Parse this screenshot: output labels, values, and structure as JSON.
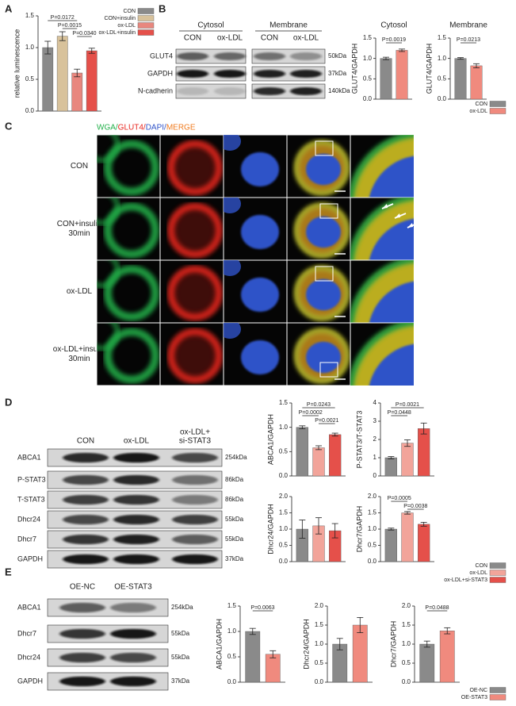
{
  "panel_labels": [
    "A",
    "B",
    "C",
    "D",
    "E"
  ],
  "chart_data": [
    {
      "type": "bar",
      "ylabel": "relative luminescence",
      "categories": [
        "CON",
        "CON+insulin",
        "ox-LDL",
        "ox-LDL+insulin"
      ],
      "values": [
        1.0,
        1.18,
        0.6,
        0.95
      ],
      "errors": [
        0.1,
        0.07,
        0.06,
        0.04
      ],
      "colors": [
        "#8a8a8a",
        "#d8c29b",
        "#e8877e",
        "#e5504a"
      ],
      "ylim": [
        0,
        1.5
      ],
      "yticks": [
        {
          "value": 0,
          "label": "0.0"
        },
        {
          "value": 0.5,
          "label": "0.5"
        },
        {
          "value": 1,
          "label": "1.0"
        },
        {
          "value": 1.5,
          "label": "1.5"
        }
      ],
      "annotations": [
        {
          "text": "P=0.0172",
          "between": [
            0,
            2
          ]
        },
        {
          "text": "P=0.0015",
          "between": [
            1,
            2
          ]
        },
        {
          "text": "P=0.0340",
          "between": [
            2,
            3
          ]
        }
      ]
    },
    {
      "type": "bar",
      "title": "Cytosol",
      "ylabel": "GLUT4/GAPDH",
      "values": [
        1.0,
        1.2
      ],
      "errors": [
        0.03,
        0.03
      ],
      "colors": [
        "#8a8a8a",
        "#f08a7e"
      ],
      "ylim": [
        0,
        1.5
      ],
      "yticks": [
        {
          "value": 0,
          "label": "0.0"
        },
        {
          "value": 0.5,
          "label": "0.5"
        },
        {
          "value": 1,
          "label": "1.0"
        },
        {
          "value": 1.5,
          "label": "1.5"
        }
      ],
      "annotations": [
        {
          "text": "P=0.0019",
          "between": [
            0,
            1
          ]
        }
      ]
    },
    {
      "type": "bar",
      "title": "Membrane",
      "ylabel": "GLUT4/GAPDH",
      "categories": [
        "CON",
        "ox-LDL"
      ],
      "values": [
        1.0,
        0.82
      ],
      "errors": [
        0.02,
        0.05
      ],
      "colors": [
        "#8a8a8a",
        "#f08a7e"
      ],
      "ylim": [
        0,
        1.5
      ],
      "yticks": [
        {
          "value": 0,
          "label": "0.0"
        },
        {
          "value": 0.5,
          "label": "0.5"
        },
        {
          "value": 1,
          "label": "1.0"
        },
        {
          "value": 1.5,
          "label": "1.5"
        }
      ],
      "annotations": [
        {
          "text": "P=0.0213",
          "between": [
            0,
            1
          ]
        }
      ]
    },
    {
      "type": "bar",
      "ylabel": "ABCA1/GAPDH",
      "values": [
        1.0,
        0.58,
        0.85
      ],
      "errors": [
        0.03,
        0.04,
        0.03
      ],
      "colors": [
        "#8a8a8a",
        "#f2a49a",
        "#e5504a"
      ],
      "ylim": [
        0,
        1.5
      ],
      "yticks": [
        {
          "value": 0,
          "label": "0.0"
        },
        {
          "value": 0.5,
          "label": "0.5"
        },
        {
          "value": 1,
          "label": "1.0"
        },
        {
          "value": 1.5,
          "label": "1.5"
        }
      ],
      "annotations": [
        {
          "text": "P=0.0243",
          "between": [
            0,
            2
          ]
        },
        {
          "text": "P=0.0002",
          "between": [
            0,
            1
          ]
        },
        {
          "text": "P=0.0021",
          "between": [
            1,
            2
          ]
        }
      ]
    },
    {
      "type": "bar",
      "ylabel": "P-STAT3/T-STAT3",
      "values": [
        1.0,
        1.8,
        2.6
      ],
      "errors": [
        0.06,
        0.18,
        0.3
      ],
      "colors": [
        "#8a8a8a",
        "#f2a49a",
        "#e5504a"
      ],
      "ylim": [
        0,
        4
      ],
      "yticks": [
        0,
        1,
        2,
        3,
        4
      ],
      "annotations": [
        {
          "text": "P=0.0021",
          "between": [
            0,
            2
          ]
        },
        {
          "text": "P=0.0448",
          "between": [
            0,
            1
          ]
        }
      ]
    },
    {
      "type": "bar",
      "ylabel": "Dhcr24/GAPDH",
      "values": [
        1.0,
        1.1,
        0.95
      ],
      "errors": [
        0.28,
        0.25,
        0.22
      ],
      "colors": [
        "#8a8a8a",
        "#f2a49a",
        "#e5504a"
      ],
      "ylim": [
        0,
        2
      ],
      "yticks": [
        {
          "value": 0,
          "label": "0.0"
        },
        {
          "value": 0.5,
          "label": "0.5"
        },
        {
          "value": 1,
          "label": "1.0"
        },
        {
          "value": 1.5,
          "label": "1.5"
        },
        {
          "value": 2,
          "label": "2.0"
        }
      ],
      "annotations": []
    },
    {
      "type": "bar",
      "ylabel": "Dhcr7/GAPDH",
      "categories": [
        "CON",
        "ox-LDL",
        "ox-LDL+si-STAT3"
      ],
      "values": [
        1.0,
        1.5,
        1.15
      ],
      "errors": [
        0.03,
        0.04,
        0.06
      ],
      "colors": [
        "#8a8a8a",
        "#f2a49a",
        "#e5504a"
      ],
      "ylim": [
        0,
        2
      ],
      "yticks": [
        {
          "value": 0,
          "label": "0.0"
        },
        {
          "value": 0.5,
          "label": "0.5"
        },
        {
          "value": 1,
          "label": "1.0"
        },
        {
          "value": 1.5,
          "label": "1.5"
        },
        {
          "value": 2,
          "label": "2.0"
        }
      ],
      "annotations": [
        {
          "text": "P=0.0005",
          "between": [
            0,
            1
          ]
        },
        {
          "text": "P=0.0038",
          "between": [
            1,
            2
          ]
        }
      ]
    },
    {
      "type": "bar",
      "ylabel": "ABCA1/GAPDH",
      "values": [
        1.0,
        0.55
      ],
      "errors": [
        0.06,
        0.07
      ],
      "colors": [
        "#8a8a8a",
        "#f08a7e"
      ],
      "ylim": [
        0,
        1.5
      ],
      "yticks": [
        {
          "value": 0,
          "label": "0.0"
        },
        {
          "value": 0.5,
          "label": "0.5"
        },
        {
          "value": 1,
          "label": "1.0"
        },
        {
          "value": 1.5,
          "label": "1.5"
        }
      ],
      "annotations": [
        {
          "text": "P=0.0063",
          "between": [
            0,
            1
          ]
        }
      ]
    },
    {
      "type": "bar",
      "ylabel": "Dhcr24/GAPDH",
      "values": [
        1.0,
        1.5
      ],
      "errors": [
        0.15,
        0.2
      ],
      "colors": [
        "#8a8a8a",
        "#f08a7e"
      ],
      "ylim": [
        0,
        2
      ],
      "yticks": [
        {
          "value": 0,
          "label": "0.0"
        },
        {
          "value": 0.5,
          "label": "0.5"
        },
        {
          "value": 1,
          "label": "1.0"
        },
        {
          "value": 1.5,
          "label": "1.5"
        },
        {
          "value": 2,
          "label": "2.0"
        }
      ],
      "annotations": []
    },
    {
      "type": "bar",
      "ylabel": "Dhcr7/GAPDH",
      "categories": [
        "OE-NC",
        "OE-STAT3"
      ],
      "values": [
        1.0,
        1.35
      ],
      "errors": [
        0.08,
        0.08
      ],
      "colors": [
        "#8a8a8a",
        "#f08a7e"
      ],
      "ylim": [
        0,
        2
      ],
      "yticks": [
        {
          "value": 0,
          "label": "0.0"
        },
        {
          "value": 0.5,
          "label": "0.5"
        },
        {
          "value": 1,
          "label": "1.0"
        },
        {
          "value": 1.5,
          "label": "1.5"
        },
        {
          "value": 2,
          "label": "2.0"
        }
      ],
      "annotations": [
        {
          "text": "P=0.0488",
          "between": [
            0,
            1
          ]
        }
      ]
    }
  ],
  "blots": [
    {
      "groups": [
        "Cytosol",
        "Membrane"
      ],
      "lanes": [
        [
          "CON"
        ],
        [
          "ox-LDL"
        ],
        [
          "CON"
        ],
        [
          "ox-LDL"
        ]
      ],
      "rows": [
        {
          "label": "GLUT4",
          "kda": "50kDa"
        },
        {
          "label": "GAPDH",
          "kda": "37kDa"
        },
        {
          "label": "N-cadherin",
          "kda": "140kDa"
        }
      ]
    },
    {
      "lanes": [
        [
          "CON"
        ],
        [
          "ox-LDL"
        ],
        [
          "ox-LDL+",
          "si-STAT3"
        ]
      ],
      "rows": [
        {
          "label": "ABCA1",
          "kda": "254kDa"
        },
        {
          "label": "P-STAT3",
          "kda": "86kDa"
        },
        {
          "label": "T-STAT3",
          "kda": "86kDa"
        },
        {
          "label": "Dhcr24",
          "kda": "55kDa"
        },
        {
          "label": "Dhcr7",
          "kda": "55kDa"
        },
        {
          "label": "GAPDH",
          "kda": "37kDa"
        }
      ]
    },
    {
      "lanes": [
        [
          "OE-NC"
        ],
        [
          "OE-STAT3"
        ]
      ],
      "rows": [
        {
          "label": "ABCA1",
          "kda": "254kDa"
        },
        {
          "label": "Dhcr7",
          "kda": "55kDa"
        },
        {
          "label": "Dhcr24",
          "kda": "55kDa"
        },
        {
          "label": "GAPDH",
          "kda": "37kDa"
        }
      ]
    }
  ],
  "microscopy": {
    "channels": [
      {
        "text": "WGA/",
        "color": "#22b04a"
      },
      {
        "text": "GLUT4/",
        "color": "#e8261f"
      },
      {
        "text": "DAPI/",
        "color": "#2f52c8"
      },
      {
        "text": "MERGE",
        "color": "#f07b1e"
      }
    ],
    "rows": [
      [
        "CON"
      ],
      [
        "CON+insulin",
        "30min"
      ],
      [
        "ox-LDL"
      ],
      [
        "ox-LDL+insulin",
        "30min"
      ]
    ]
  }
}
